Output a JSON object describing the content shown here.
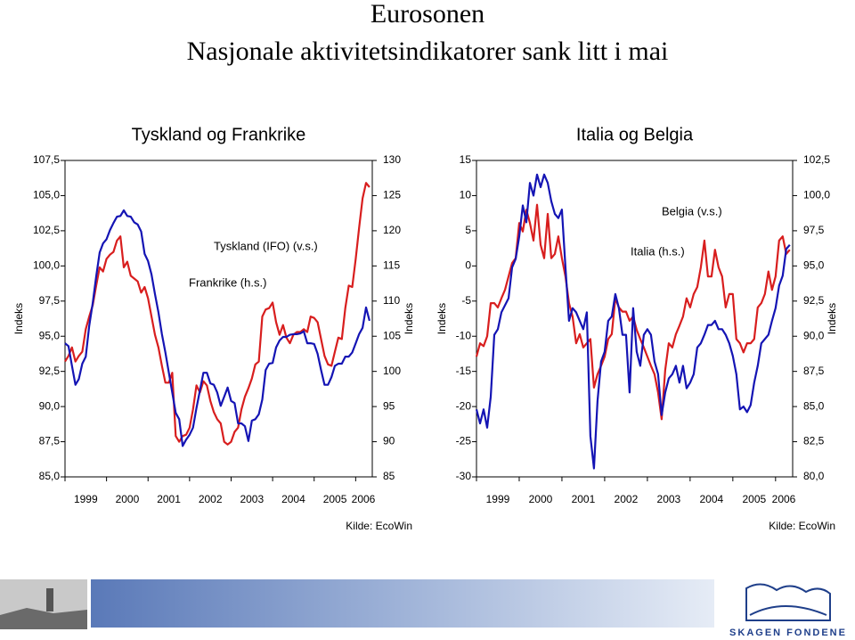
{
  "header": {
    "title": "Eurosonen",
    "subtitle": "Nasjonale aktivitetsindikatorer sank litt i mai"
  },
  "chart_data": [
    {
      "type": "line",
      "title": "Tyskland og Frankrike",
      "y_label": "Indeks",
      "y2_label": "Indeks",
      "source": "Kilde: EcoWin",
      "xlim": [
        1999,
        2006.4
      ],
      "xticks": [
        1999,
        2000,
        2001,
        2002,
        2003,
        2004,
        2005,
        2006
      ],
      "ylim": [
        85,
        107.5
      ],
      "yticks": [
        {
          "value": 85,
          "label": "85,0"
        },
        {
          "value": 87.5,
          "label": "87,5"
        },
        {
          "value": 90,
          "label": "90,0"
        },
        {
          "value": 92.5,
          "label": "92,5"
        },
        {
          "value": 95,
          "label": "95,0"
        },
        {
          "value": 97.5,
          "label": "97,5"
        },
        {
          "value": 100,
          "label": "100,0"
        },
        {
          "value": 102.5,
          "label": "102,5"
        },
        {
          "value": 105,
          "label": "105,0"
        },
        {
          "value": 107.5,
          "label": "107,5"
        }
      ],
      "y2lim": [
        85,
        130
      ],
      "y2ticks": [
        85,
        90,
        95,
        100,
        105,
        110,
        115,
        120,
        125,
        130
      ],
      "series": [
        {
          "name": "Tyskland (IFO) (v.s.)",
          "color": "#d81e1e",
          "values": [
            93.2,
            93.6,
            94.2,
            93.2,
            93.6,
            93.9,
            95.5,
            96.4,
            97.2,
            98.6,
            99.9,
            99.6,
            100.5,
            100.8,
            101.0,
            101.8,
            102.1,
            99.9,
            100.3,
            99.3,
            99.1,
            98.9,
            98.1,
            98.5,
            97.7,
            96.4,
            95.1,
            94.2,
            92.9,
            91.7,
            91.7,
            92.4,
            87.9,
            87.5,
            87.9,
            88.0,
            88.5,
            89.8,
            91.5,
            91.0,
            91.8,
            91.5,
            90.4,
            89.6,
            89.1,
            88.8,
            87.5,
            87.3,
            87.5,
            88.2,
            88.5,
            89.8,
            90.7,
            91.3,
            92.0,
            93.0,
            93.2,
            96.4,
            96.9,
            97.0,
            97.4,
            96.0,
            95.1,
            95.8,
            94.9,
            94.5,
            95.1,
            95.3,
            95.3,
            95.5,
            95.3,
            96.4,
            96.3,
            96.0,
            94.8,
            93.6,
            93.0,
            92.9,
            93.9,
            94.9,
            94.8,
            97.0,
            98.6,
            98.5,
            100.5,
            102.7,
            104.8,
            105.9,
            105.6
          ]
        },
        {
          "name": "Frankrike (h.s.)",
          "color": "#1414b4",
          "axis": "y2",
          "values": [
            104.0,
            103.6,
            100.8,
            98.1,
            98.9,
            101.1,
            102.1,
            106.5,
            109.7,
            113.5,
            116.9,
            118.2,
            118.8,
            120.1,
            121.1,
            122.0,
            122.1,
            122.9,
            122.1,
            122.0,
            121.2,
            120.9,
            119.9,
            116.7,
            115.7,
            113.8,
            111.0,
            108.4,
            105.3,
            102.7,
            99.8,
            97.0,
            94.1,
            93.2,
            89.4,
            90.3,
            91.0,
            92.0,
            94.8,
            97.3,
            99.8,
            99.8,
            98.3,
            98.1,
            97.0,
            95.1,
            96.4,
            97.7,
            95.8,
            95.5,
            92.6,
            92.6,
            92.2,
            90.1,
            93.0,
            93.2,
            93.9,
            96.0,
            100.2,
            101.1,
            101.2,
            103.4,
            104.4,
            104.9,
            104.9,
            105.2,
            105.3,
            105.3,
            105.4,
            105.7,
            104.0,
            104.0,
            103.9,
            102.5,
            100.2,
            98.1,
            98.1,
            99.2,
            100.8,
            101.1,
            101.1,
            102.1,
            102.1,
            102.7,
            104.0,
            105.3,
            106.2,
            109.1,
            107.2
          ]
        }
      ]
    },
    {
      "type": "line",
      "title": "Italia og Belgia",
      "y_label": "Indeks",
      "y2_label": "Indeks",
      "source": "Kilde: EcoWin",
      "xlim": [
        1999,
        2006.4
      ],
      "xticks": [
        1999,
        2000,
        2001,
        2002,
        2003,
        2004,
        2005,
        2006
      ],
      "ylim": [
        -30,
        15
      ],
      "yticks": [
        -30,
        -25,
        -20,
        -15,
        -10,
        -5,
        0,
        5,
        10,
        15
      ],
      "y2lim": [
        80,
        102.5
      ],
      "y2ticks": [
        {
          "value": 80,
          "label": "80,0"
        },
        {
          "value": 82.5,
          "label": "82,5"
        },
        {
          "value": 85,
          "label": "85,0"
        },
        {
          "value": 87.5,
          "label": "87,5"
        },
        {
          "value": 90,
          "label": "90,0"
        },
        {
          "value": 92.5,
          "label": "92,5"
        },
        {
          "value": 95,
          "label": "95,0"
        },
        {
          "value": 97.5,
          "label": "97,5"
        },
        {
          "value": 100,
          "label": "100,0"
        },
        {
          "value": 102.5,
          "label": "102,5"
        }
      ],
      "series": [
        {
          "name": "Belgia (v.s.)",
          "color": "#d81e1e",
          "values": [
            -12.9,
            -11.0,
            -11.4,
            -10.0,
            -5.3,
            -5.3,
            -5.9,
            -4.6,
            -3.4,
            -1.5,
            0.4,
            1.1,
            6.1,
            4.9,
            8.0,
            6.1,
            3.6,
            8.7,
            3.0,
            1.1,
            7.4,
            1.1,
            1.7,
            4.2,
            1.1,
            -1.5,
            -5.3,
            -7.2,
            -11.0,
            -9.7,
            -11.6,
            -11.0,
            -10.4,
            -17.3,
            -15.4,
            -14.2,
            -12.9,
            -10.4,
            -9.7,
            -4.6,
            -5.9,
            -6.5,
            -6.5,
            -7.8,
            -7.2,
            -9.1,
            -10.4,
            -11.6,
            -12.9,
            -14.2,
            -15.4,
            -18.0,
            -21.8,
            -14.8,
            -11.0,
            -11.6,
            -9.7,
            -8.5,
            -7.2,
            -4.6,
            -5.9,
            -4.0,
            -3.0,
            -0.2,
            3.6,
            -1.5,
            -1.5,
            2.3,
            -0.2,
            -1.5,
            -5.9,
            -4.0,
            -4.0,
            -10.4,
            -11.0,
            -12.3,
            -11.0,
            -11.0,
            -10.4,
            -5.9,
            -5.3,
            -4.0,
            -0.8,
            -3.4,
            -1.5,
            3.6,
            4.2,
            1.7,
            2.3
          ]
        },
        {
          "name": "Italia (h.s.)",
          "color": "#1414b4",
          "axis": "y2",
          "values": [
            84.8,
            83.8,
            84.8,
            83.5,
            85.7,
            90.1,
            90.5,
            91.7,
            92.2,
            92.7,
            94.9,
            95.5,
            97.1,
            99.3,
            98.1,
            100.9,
            100.0,
            101.5,
            100.6,
            101.5,
            100.9,
            99.6,
            98.7,
            98.4,
            99.0,
            94.9,
            91.1,
            92.0,
            91.7,
            91.1,
            90.5,
            91.7,
            82.9,
            80.6,
            85.4,
            88.2,
            88.9,
            91.1,
            91.4,
            93.0,
            92.0,
            90.1,
            90.1,
            86.0,
            92.0,
            88.9,
            87.9,
            90.1,
            90.5,
            90.1,
            88.2,
            87.3,
            84.4,
            86.0,
            87.0,
            87.3,
            87.9,
            86.7,
            87.9,
            86.3,
            86.7,
            87.3,
            89.2,
            89.5,
            90.1,
            90.8,
            90.8,
            91.1,
            90.5,
            90.5,
            90.1,
            89.5,
            88.6,
            87.3,
            84.8,
            85.0,
            84.6,
            85.1,
            86.7,
            87.9,
            89.5,
            89.8,
            90.1,
            91.1,
            92.0,
            93.6,
            94.3,
            96.2,
            96.5
          ]
        }
      ]
    }
  ],
  "footer": {
    "logo": "SKAGEN FONDENE"
  }
}
